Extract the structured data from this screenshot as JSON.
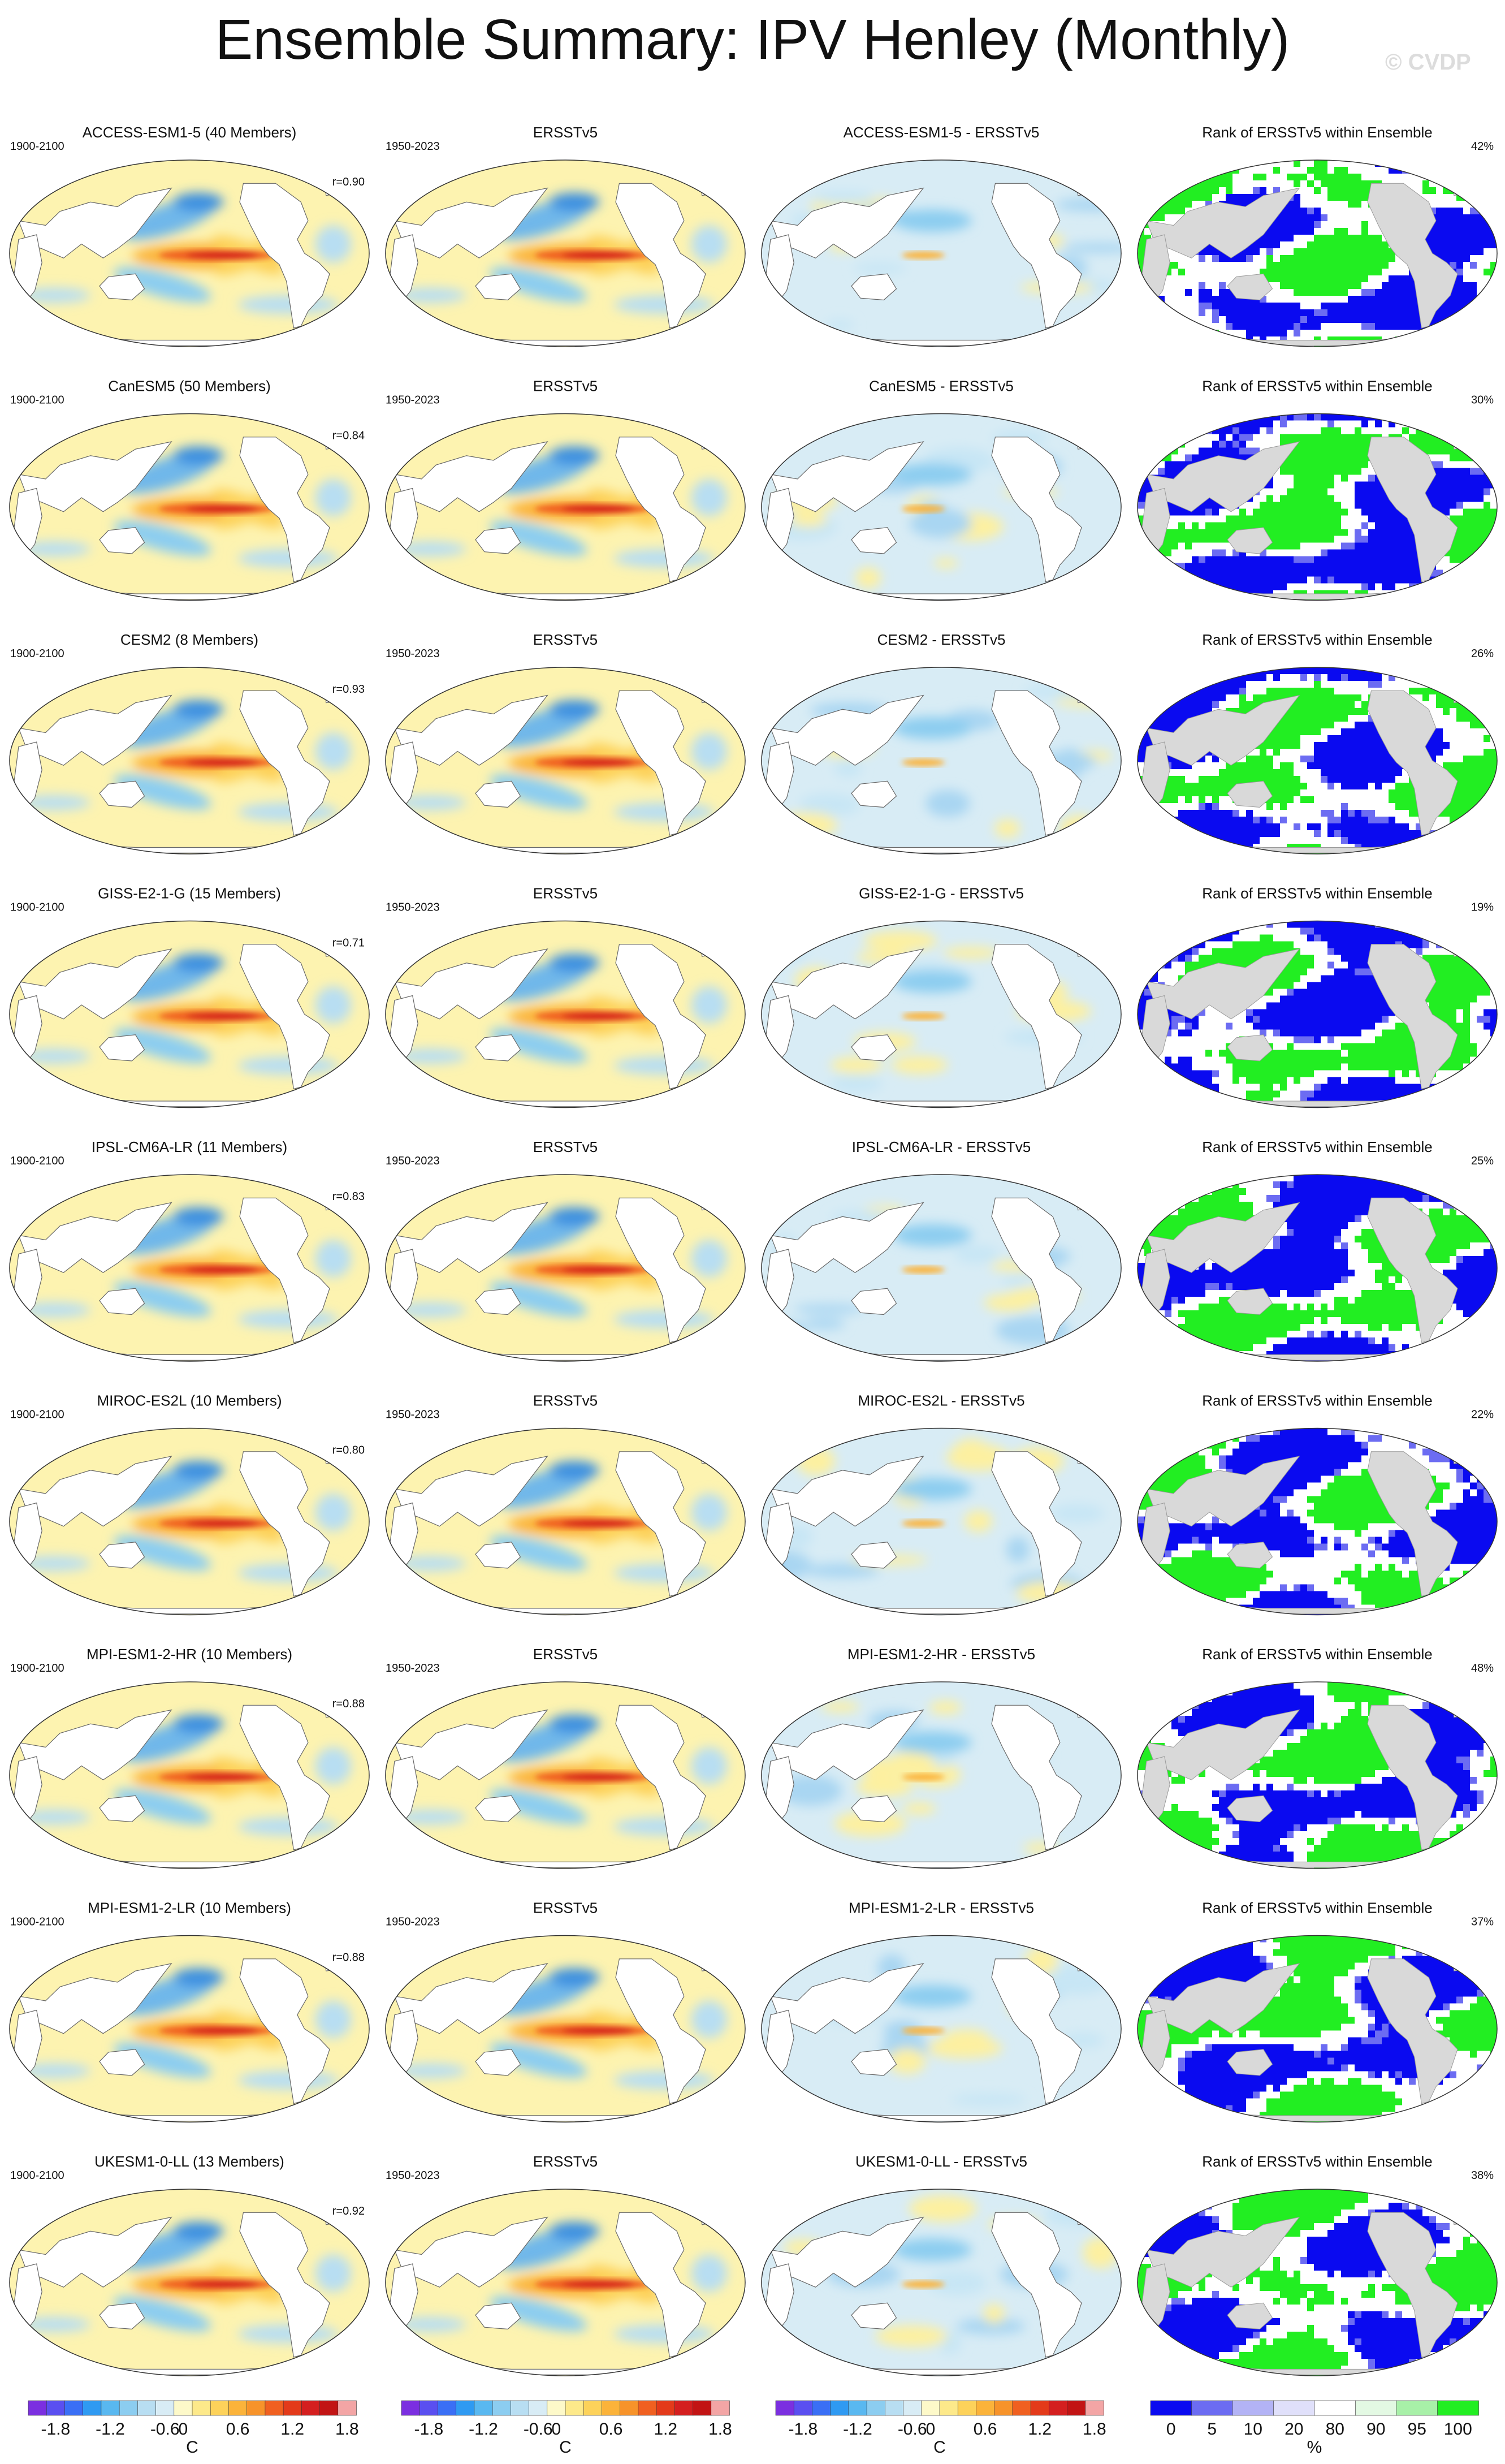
{
  "title": "Ensemble Summary: IPV Henley (Monthly)",
  "copyright": "© CVDP",
  "model_period": "1900-2100",
  "obs_period": "1950-2023",
  "obs_name": "ERSSTv5",
  "rank_title": "Rank of ERSSTv5 within Ensemble",
  "rows": [
    {
      "model_label": "ACCESS-ESM1-5 (40 Members)",
      "diff_title": "ACCESS-ESM1-5 - ERSSTv5",
      "r": "r=0.90",
      "rank_pct": "42%",
      "color": "#1f77b4"
    },
    {
      "model_label": "CanESM5 (50 Members)",
      "diff_title": "CanESM5 - ERSSTv5",
      "r": "r=0.84",
      "rank_pct": "30%",
      "color": "#4fa35a"
    },
    {
      "model_label": "CESM2 (8 Members)",
      "diff_title": "CESM2 - ERSSTv5",
      "r": "r=0.93",
      "rank_pct": "26%",
      "color": "#d6c24a"
    },
    {
      "model_label": "GISS-E2-1-G (15 Members)",
      "diff_title": "GISS-E2-1-G - ERSSTv5",
      "r": "r=0.71",
      "rank_pct": "19%",
      "color": "#8b4513"
    },
    {
      "model_label": "IPSL-CM6A-LR (11 Members)",
      "diff_title": "IPSL-CM6A-LR - ERSSTv5",
      "r": "r=0.83",
      "rank_pct": "25%",
      "color": "#8e5ccf"
    },
    {
      "model_label": "MIROC-ES2L (10 Members)",
      "diff_title": "MIROC-ES2L - ERSSTv5",
      "r": "r=0.80",
      "rank_pct": "22%",
      "color": "#d8a27a"
    },
    {
      "model_label": "MPI-ESM1-2-HR (10 Members)",
      "diff_title": "MPI-ESM1-2-HR - ERSSTv5",
      "r": "r=0.88",
      "rank_pct": "48%",
      "color": "#2e7b8c"
    },
    {
      "model_label": "MPI-ESM1-2-LR (10 Members)",
      "diff_title": "MPI-ESM1-2-LR - ERSSTv5",
      "r": "r=0.88",
      "rank_pct": "37%",
      "color": "#c8401e"
    },
    {
      "model_label": "UKESM1-0-LL (13 Members)",
      "diff_title": "UKESM1-0-LL - ERSSTv5",
      "r": "r=0.92",
      "rank_pct": "38%",
      "color": "#c9c4a8"
    }
  ],
  "colorbar_c": {
    "unit": "C",
    "ticks": [
      "-1.8",
      "-1.2",
      "-0.6",
      "0",
      "0.6",
      "1.2",
      "1.8"
    ],
    "colors": [
      "#7b2fe0",
      "#5a4ff0",
      "#3a6ff5",
      "#2f9af2",
      "#59b8f0",
      "#8ccdf0",
      "#b8def2",
      "#d8ecf5",
      "#fdf9c9",
      "#fde98a",
      "#fdd25a",
      "#fbb33a",
      "#f7932a",
      "#f06020",
      "#e33a1a",
      "#d41f1f",
      "#c21414",
      "#f3a5a5"
    ]
  },
  "colorbar_pct": {
    "unit": "%",
    "ticks": [
      "0",
      "5",
      "10",
      "20",
      "80",
      "90",
      "95",
      "100"
    ],
    "colors": [
      "#0a0af0",
      "#6c6cf2",
      "#b3b3f5",
      "#e0e0fa",
      "#ffffff",
      "#e3f9e3",
      "#a8f0a8",
      "#22ee22"
    ]
  }
}
